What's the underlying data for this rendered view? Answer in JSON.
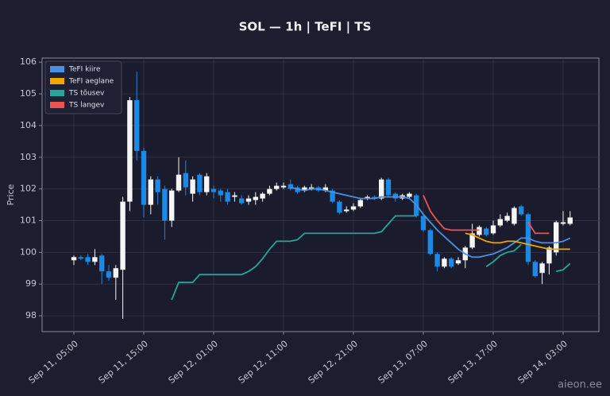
{
  "chart_data": {
    "type": "candlestick",
    "title": "SOL — 1h  |  TeFI  |  TS",
    "ylabel": "Price",
    "watermark": "aieon.ee",
    "x": [
      "Sep 11, 05:00",
      "Sep 11, 06:00",
      "Sep 11, 07:00",
      "Sep 11, 08:00",
      "Sep 11, 09:00",
      "Sep 11, 10:00",
      "Sep 11, 11:00",
      "Sep 11, 12:00",
      "Sep 11, 13:00",
      "Sep 11, 14:00",
      "Sep 11, 15:00",
      "Sep 11, 16:00",
      "Sep 11, 17:00",
      "Sep 11, 18:00",
      "Sep 11, 19:00",
      "Sep 11, 20:00",
      "Sep 11, 21:00",
      "Sep 11, 22:00",
      "Sep 11, 23:00",
      "Sep 12, 00:00",
      "Sep 12, 01:00",
      "Sep 12, 02:00",
      "Sep 12, 03:00",
      "Sep 12, 04:00",
      "Sep 12, 05:00",
      "Sep 12, 06:00",
      "Sep 12, 07:00",
      "Sep 12, 08:00",
      "Sep 12, 09:00",
      "Sep 12, 10:00",
      "Sep 12, 11:00",
      "Sep 12, 12:00",
      "Sep 12, 13:00",
      "Sep 12, 14:00",
      "Sep 12, 15:00",
      "Sep 12, 16:00",
      "Sep 12, 17:00",
      "Sep 12, 18:00",
      "Sep 12, 19:00",
      "Sep 12, 20:00",
      "Sep 12, 21:00",
      "Sep 12, 22:00",
      "Sep 12, 23:00",
      "Sep 13, 00:00",
      "Sep 13, 01:00",
      "Sep 13, 02:00",
      "Sep 13, 03:00",
      "Sep 13, 04:00",
      "Sep 13, 05:00",
      "Sep 13, 06:00",
      "Sep 13, 07:00",
      "Sep 13, 08:00",
      "Sep 13, 09:00",
      "Sep 13, 10:00",
      "Sep 13, 11:00",
      "Sep 13, 12:00",
      "Sep 13, 13:00",
      "Sep 13, 14:00",
      "Sep 13, 15:00",
      "Sep 13, 16:00",
      "Sep 13, 17:00",
      "Sep 13, 18:00",
      "Sep 13, 19:00",
      "Sep 13, 20:00",
      "Sep 13, 21:00",
      "Sep 13, 22:00",
      "Sep 13, 23:00",
      "Sep 14, 00:00",
      "Sep 14, 01:00",
      "Sep 14, 02:00",
      "Sep 14, 03:00",
      "Sep 14, 04:00"
    ],
    "open": [
      99.75,
      99.85,
      99.85,
      99.7,
      99.9,
      99.4,
      99.2,
      99.45,
      101.6,
      104.8,
      103.2,
      101.5,
      102.3,
      102.0,
      101.0,
      101.95,
      102.5,
      101.85,
      102.45,
      101.9,
      102.0,
      101.95,
      101.9,
      101.75,
      101.7,
      101.6,
      101.65,
      101.7,
      101.85,
      102.0,
      102.05,
      102.15,
      102.05,
      101.95,
      102.0,
      102.05,
      101.95,
      101.95,
      101.6,
      101.3,
      101.35,
      101.45,
      101.7,
      101.75,
      101.7,
      102.3,
      101.85,
      101.7,
      101.75,
      101.8,
      101.15,
      100.7,
      99.95,
      99.55,
      99.8,
      99.65,
      99.75,
      100.15,
      100.55,
      100.75,
      100.6,
      100.85,
      101.0,
      100.9,
      101.45,
      101.2,
      99.7,
      99.35,
      99.65,
      100.0,
      100.9,
      100.9
    ],
    "close": [
      99.85,
      99.8,
      99.7,
      99.85,
      99.4,
      99.2,
      99.5,
      101.6,
      104.8,
      103.2,
      101.5,
      102.3,
      101.9,
      101.0,
      101.95,
      102.45,
      102.05,
      102.3,
      101.9,
      102.4,
      101.9,
      101.8,
      101.6,
      101.8,
      101.55,
      101.7,
      101.75,
      101.85,
      102.0,
      102.1,
      102.1,
      102.0,
      101.9,
      102.05,
      102.05,
      101.95,
      102.05,
      101.6,
      101.25,
      101.35,
      101.45,
      101.65,
      101.75,
      101.7,
      102.3,
      101.8,
      101.7,
      101.8,
      101.85,
      101.15,
      100.7,
      99.95,
      99.55,
      99.8,
      99.55,
      99.75,
      100.15,
      100.6,
      100.8,
      100.55,
      100.85,
      101.05,
      101.15,
      101.4,
      101.2,
      99.7,
      99.25,
      99.65,
      100.15,
      100.95,
      100.95,
      101.1
    ],
    "high": [
      99.9,
      99.9,
      99.95,
      100.1,
      99.95,
      99.6,
      99.6,
      101.75,
      104.9,
      105.7,
      103.3,
      102.4,
      102.4,
      102.1,
      102.0,
      103.0,
      102.9,
      102.4,
      102.5,
      102.5,
      102.1,
      102.0,
      102.0,
      101.9,
      101.8,
      101.8,
      101.9,
      101.9,
      102.1,
      102.2,
      102.2,
      102.3,
      102.1,
      102.1,
      102.15,
      102.1,
      102.15,
      102.0,
      101.65,
      101.45,
      101.55,
      101.7,
      101.8,
      101.8,
      102.35,
      102.35,
      101.9,
      101.85,
      101.9,
      101.85,
      101.2,
      100.75,
      100.0,
      99.85,
      99.85,
      99.85,
      100.2,
      100.9,
      100.85,
      100.8,
      101.0,
      101.2,
      101.25,
      101.45,
      101.5,
      101.25,
      99.75,
      99.7,
      100.2,
      101.0,
      101.3,
      101.3
    ],
    "low": [
      99.6,
      99.75,
      99.6,
      99.6,
      99.0,
      99.1,
      98.5,
      97.9,
      101.3,
      102.9,
      101.1,
      101.2,
      101.5,
      100.4,
      100.8,
      101.9,
      101.8,
      101.6,
      101.8,
      101.8,
      101.7,
      101.6,
      101.5,
      101.6,
      101.5,
      101.5,
      101.5,
      101.6,
      101.8,
      101.95,
      102.0,
      101.95,
      101.85,
      101.9,
      101.95,
      101.9,
      101.9,
      101.55,
      101.2,
      101.25,
      101.3,
      101.4,
      101.65,
      101.65,
      101.65,
      101.75,
      101.6,
      101.65,
      101.7,
      101.1,
      100.65,
      99.9,
      99.4,
      99.5,
      99.5,
      99.6,
      99.5,
      100.1,
      100.5,
      100.5,
      100.55,
      100.8,
      100.95,
      100.85,
      101.15,
      99.6,
      99.2,
      99.0,
      99.3,
      99.9,
      100.85,
      100.85
    ],
    "up_color": "#f5f5f5",
    "down_color": "#1e88e5",
    "series": [
      {
        "name": "TeFI kiire",
        "color": "#4a90e2",
        "values": [
          null,
          null,
          null,
          null,
          null,
          null,
          null,
          null,
          null,
          null,
          null,
          null,
          null,
          null,
          null,
          null,
          null,
          null,
          null,
          null,
          null,
          null,
          null,
          null,
          null,
          null,
          null,
          null,
          null,
          null,
          null,
          102.05,
          102.0,
          101.95,
          102.0,
          102.0,
          101.95,
          101.9,
          101.85,
          101.8,
          101.75,
          101.7,
          101.7,
          101.7,
          101.75,
          101.75,
          101.75,
          101.75,
          101.7,
          101.5,
          101.2,
          100.95,
          100.7,
          100.5,
          100.3,
          100.1,
          99.95,
          99.85,
          99.85,
          99.9,
          99.95,
          100.05,
          100.15,
          100.3,
          100.45,
          100.45,
          100.35,
          100.3,
          100.3,
          100.3,
          100.35,
          100.45
        ]
      },
      {
        "name": "TeFI aeglane",
        "color": "#f0a500",
        "values": [
          null,
          null,
          null,
          null,
          null,
          null,
          null,
          null,
          null,
          null,
          null,
          null,
          null,
          null,
          null,
          null,
          null,
          null,
          null,
          null,
          null,
          null,
          null,
          null,
          null,
          null,
          null,
          null,
          null,
          null,
          null,
          null,
          null,
          null,
          null,
          null,
          null,
          null,
          null,
          null,
          null,
          null,
          null,
          null,
          null,
          null,
          null,
          null,
          null,
          null,
          null,
          null,
          null,
          null,
          null,
          null,
          100.6,
          100.55,
          100.45,
          100.35,
          100.3,
          100.3,
          100.35,
          100.35,
          100.3,
          100.25,
          100.2,
          100.15,
          100.1,
          100.1,
          100.1,
          100.1
        ]
      },
      {
        "name": "TS tõusev",
        "color": "#26a69a",
        "values": [
          null,
          null,
          null,
          null,
          null,
          null,
          null,
          null,
          null,
          null,
          null,
          null,
          null,
          null,
          98.5,
          99.05,
          99.05,
          99.05,
          99.3,
          99.3,
          99.3,
          99.3,
          99.3,
          99.3,
          99.3,
          99.4,
          99.55,
          99.8,
          100.1,
          100.35,
          100.35,
          100.35,
          100.4,
          100.6,
          100.6,
          100.6,
          100.6,
          100.6,
          100.6,
          100.6,
          100.6,
          100.6,
          100.6,
          100.6,
          100.65,
          100.9,
          101.15,
          101.15,
          101.15,
          101.15,
          null,
          null,
          null,
          null,
          null,
          null,
          null,
          null,
          null,
          99.55,
          99.7,
          99.9,
          100.0,
          100.05,
          100.25,
          null,
          null,
          null,
          null,
          99.4,
          99.45,
          99.65
        ]
      },
      {
        "name": "TS langev",
        "color": "#ef5350",
        "values": [
          null,
          null,
          null,
          null,
          null,
          null,
          null,
          null,
          null,
          null,
          null,
          null,
          null,
          null,
          null,
          null,
          null,
          null,
          null,
          null,
          null,
          null,
          null,
          null,
          null,
          null,
          null,
          null,
          null,
          null,
          null,
          null,
          null,
          null,
          null,
          null,
          null,
          null,
          null,
          null,
          null,
          null,
          null,
          null,
          null,
          null,
          null,
          null,
          null,
          null,
          101.8,
          101.3,
          101.0,
          100.75,
          100.7,
          100.7,
          100.7,
          100.7,
          100.7,
          null,
          null,
          null,
          null,
          null,
          null,
          100.95,
          100.6,
          100.6,
          100.6,
          null,
          null,
          null
        ]
      }
    ],
    "ylim": [
      97.5,
      106.13
    ],
    "yticks": [
      98,
      99,
      100,
      101,
      102,
      103,
      104,
      105,
      106
    ],
    "xticks": [
      "Sep 11, 05:00",
      "Sep 11, 15:00",
      "Sep 12, 01:00",
      "Sep 12, 11:00",
      "Sep 12, 21:00",
      "Sep 13, 07:00",
      "Sep 13, 17:00",
      "Sep 14, 03:00"
    ],
    "grid": true,
    "legend": "upper-left"
  }
}
